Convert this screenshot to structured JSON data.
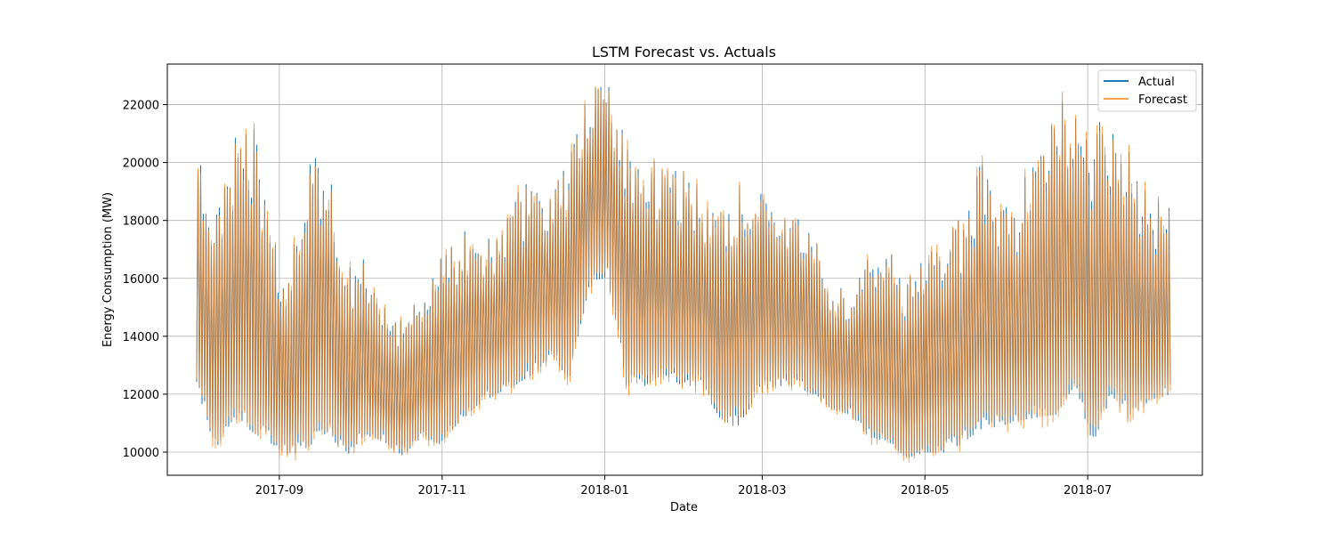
{
  "chart_data": {
    "type": "line",
    "title": "LSTM Forecast vs. Actuals",
    "xlabel": "Date",
    "ylabel": "Energy Consumption (MW)",
    "x_range": [
      "2017-07-21",
      "2018-08-13"
    ],
    "ylim": [
      9200,
      23400
    ],
    "grid": true,
    "legend_position": "top-right",
    "x_ticks": [
      {
        "date": "2017-09-01",
        "label": "2017-09"
      },
      {
        "date": "2017-11-01",
        "label": "2017-11"
      },
      {
        "date": "2018-01-01",
        "label": "2018-01"
      },
      {
        "date": "2018-03-01",
        "label": "2018-03"
      },
      {
        "date": "2018-05-01",
        "label": "2018-05"
      },
      {
        "date": "2018-07-01",
        "label": "2018-07"
      }
    ],
    "y_ticks": [
      10000,
      12000,
      14000,
      16000,
      18000,
      20000,
      22000
    ],
    "series": [
      {
        "name": "Actual",
        "color": "#1f77b4"
      },
      {
        "name": "Forecast",
        "color": "#ff7f0e"
      }
    ],
    "envelope": {
      "dates": [
        "2017-08-01",
        "2017-08-08",
        "2017-08-15",
        "2017-08-22",
        "2017-08-29",
        "2017-09-05",
        "2017-09-12",
        "2017-09-19",
        "2017-09-26",
        "2017-10-03",
        "2017-10-10",
        "2017-10-17",
        "2017-10-24",
        "2017-10-31",
        "2017-11-07",
        "2017-11-14",
        "2017-11-21",
        "2017-11-28",
        "2017-12-05",
        "2017-12-12",
        "2017-12-19",
        "2017-12-26",
        "2018-01-02",
        "2018-01-09",
        "2018-01-16",
        "2018-01-23",
        "2018-01-30",
        "2018-02-06",
        "2018-02-13",
        "2018-02-20",
        "2018-02-27",
        "2018-03-06",
        "2018-03-13",
        "2018-03-20",
        "2018-03-27",
        "2018-04-03",
        "2018-04-10",
        "2018-04-17",
        "2018-04-24",
        "2018-05-01",
        "2018-05-08",
        "2018-05-15",
        "2018-05-22",
        "2018-05-29",
        "2018-06-05",
        "2018-06-12",
        "2018-06-19",
        "2018-06-26",
        "2018-07-03",
        "2018-07-10",
        "2018-07-17",
        "2018-07-24",
        "2018-08-01"
      ],
      "high": [
        20300,
        18400,
        21000,
        21500,
        17800,
        16300,
        20300,
        20600,
        16200,
        17000,
        15000,
        14500,
        15400,
        16600,
        17500,
        17800,
        17400,
        18700,
        19900,
        18600,
        20800,
        22800,
        22700,
        21200,
        20400,
        19700,
        19700,
        19400,
        18200,
        19200,
        19100,
        18200,
        18300,
        17600,
        15700,
        15600,
        17200,
        17300,
        16100,
        17100,
        18300,
        17900,
        20600,
        18900,
        19100,
        20200,
        22400,
        21500,
        21700,
        21400,
        20600,
        18800,
        18900
      ],
      "low": [
        12300,
        10100,
        11200,
        10700,
        10300,
        9850,
        10200,
        10700,
        9850,
        10600,
        10400,
        9850,
        10500,
        10300,
        11000,
        11600,
        12000,
        12300,
        12700,
        13300,
        12500,
        15700,
        16100,
        12300,
        12300,
        12700,
        12300,
        12300,
        11200,
        10800,
        12000,
        12300,
        12300,
        12000,
        11500,
        11300,
        10500,
        10400,
        9800,
        10000,
        10000,
        10300,
        10800,
        10900,
        11100,
        11200,
        11300,
        12300,
        10300,
        12000,
        11000,
        11800,
        12000
      ]
    }
  }
}
